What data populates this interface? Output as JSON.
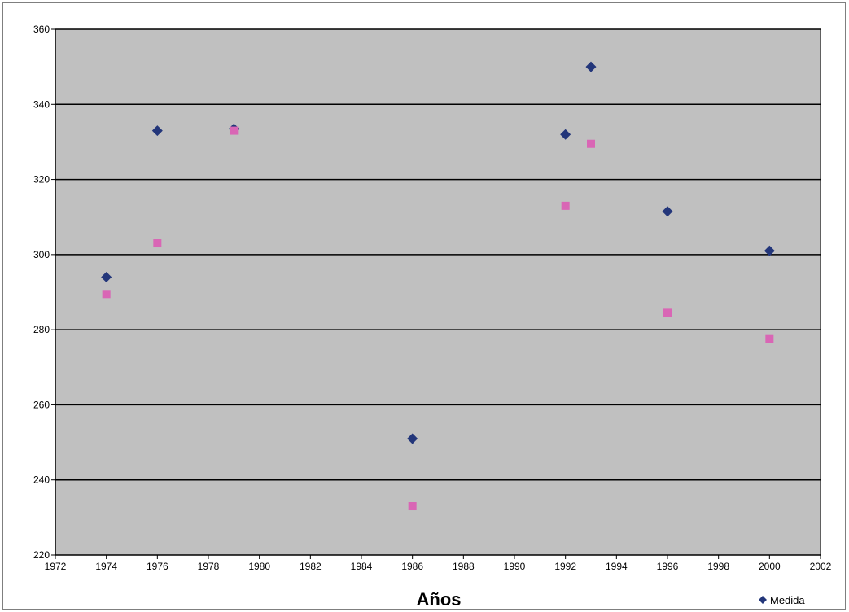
{
  "chart_data": {
    "type": "scatter",
    "title": "",
    "xlabel": "Años",
    "ylabel": "",
    "xlim": [
      1972,
      2002
    ],
    "ylim": [
      220,
      360
    ],
    "x_ticks": [
      1972,
      1974,
      1976,
      1978,
      1980,
      1982,
      1984,
      1986,
      1988,
      1990,
      1992,
      1994,
      1996,
      1998,
      2000,
      2002
    ],
    "y_ticks": [
      220,
      240,
      260,
      280,
      300,
      320,
      340,
      360
    ],
    "grid": "horizontal major lines",
    "background": "#c0c0c0",
    "legend_position": "bottom-right",
    "series": [
      {
        "name": "Medida",
        "marker": "diamond",
        "color": "#23367a",
        "in_legend": true,
        "points": [
          {
            "x": 1974,
            "y": 294
          },
          {
            "x": 1976,
            "y": 333
          },
          {
            "x": 1979,
            "y": 333.5
          },
          {
            "x": 1986,
            "y": 251
          },
          {
            "x": 1992,
            "y": 332
          },
          {
            "x": 1993,
            "y": 350
          },
          {
            "x": 1996,
            "y": 311.5
          },
          {
            "x": 2000,
            "y": 301
          }
        ]
      },
      {
        "name": "",
        "marker": "square",
        "color": "#d966b5",
        "in_legend": false,
        "points": [
          {
            "x": 1974,
            "y": 289.5
          },
          {
            "x": 1976,
            "y": 303
          },
          {
            "x": 1979,
            "y": 333
          },
          {
            "x": 1986,
            "y": 233
          },
          {
            "x": 1992,
            "y": 313
          },
          {
            "x": 1993,
            "y": 329.5
          },
          {
            "x": 1996,
            "y": 284.5
          },
          {
            "x": 2000,
            "y": 277.5
          }
        ]
      }
    ]
  }
}
